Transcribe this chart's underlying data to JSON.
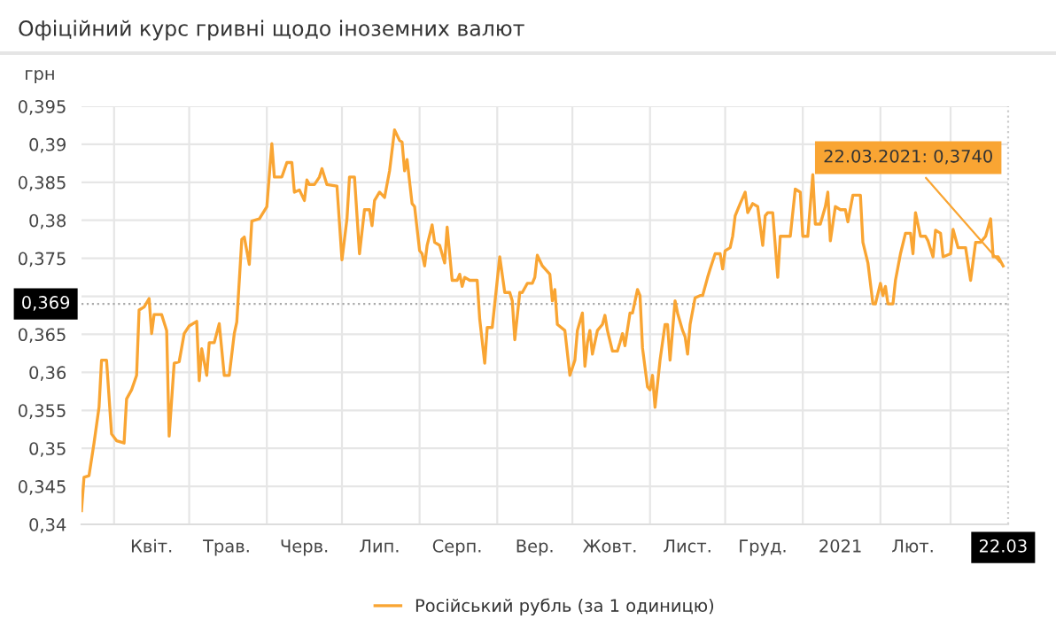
{
  "chart_data": {
    "type": "line",
    "title": "Офіційний курс гривні щодо іноземних валют",
    "ylabel": "грн",
    "x": [
      "2020-03-19",
      "2020-03-20",
      "2020-03-22",
      "2020-03-24",
      "2020-03-26",
      "2020-03-27",
      "2020-03-29",
      "2020-03-31",
      "2020-04-02",
      "2020-04-05",
      "2020-04-06",
      "2020-04-08",
      "2020-04-10",
      "2020-04-11",
      "2020-04-13",
      "2020-04-15",
      "2020-04-16",
      "2020-04-17",
      "2020-04-20",
      "2020-04-22",
      "2020-04-23",
      "2020-04-25",
      "2020-04-27",
      "2020-04-29",
      "2020-05-01",
      "2020-05-04",
      "2020-05-05",
      "2020-05-06",
      "2020-05-08",
      "2020-05-09",
      "2020-05-11",
      "2020-05-13",
      "2020-05-15",
      "2020-05-17",
      "2020-05-19",
      "2020-05-20",
      "2020-05-22",
      "2020-05-23",
      "2020-05-25",
      "2020-05-26",
      "2020-05-29",
      "2020-06-01",
      "2020-06-03",
      "2020-06-04",
      "2020-06-07",
      "2020-06-09",
      "2020-06-11",
      "2020-06-12",
      "2020-06-14",
      "2020-06-16",
      "2020-06-17",
      "2020-06-18",
      "2020-06-20",
      "2020-06-22",
      "2020-06-23",
      "2020-06-25",
      "2020-06-29",
      "2020-07-01",
      "2020-07-03",
      "2020-07-04",
      "2020-07-06",
      "2020-07-08",
      "2020-07-10",
      "2020-07-12",
      "2020-07-13",
      "2020-07-14",
      "2020-07-16",
      "2020-07-18",
      "2020-07-20",
      "2020-07-22",
      "2020-07-24",
      "2020-07-25",
      "2020-07-26",
      "2020-07-27",
      "2020-07-29",
      "2020-07-30",
      "2020-08-01",
      "2020-08-02",
      "2020-08-03",
      "2020-08-04",
      "2020-08-06",
      "2020-08-07",
      "2020-08-09",
      "2020-08-11",
      "2020-08-12",
      "2020-08-14",
      "2020-08-16",
      "2020-08-17",
      "2020-08-18",
      "2020-08-19",
      "2020-08-21",
      "2020-08-24",
      "2020-08-25",
      "2020-08-27",
      "2020-08-28",
      "2020-08-30",
      "2020-09-02",
      "2020-09-04",
      "2020-09-06",
      "2020-09-07",
      "2020-09-08",
      "2020-09-10",
      "2020-09-11",
      "2020-09-13",
      "2020-09-15",
      "2020-09-16",
      "2020-09-17",
      "2020-09-19",
      "2020-09-22",
      "2020-09-23",
      "2020-09-24",
      "2020-09-25",
      "2020-09-28",
      "2020-09-30",
      "2020-10-02",
      "2020-10-03",
      "2020-10-05",
      "2020-10-06",
      "2020-10-07",
      "2020-10-08",
      "2020-10-09",
      "2020-10-11",
      "2020-10-13",
      "2020-10-14",
      "2020-10-15",
      "2020-10-17",
      "2020-10-19",
      "2020-10-20",
      "2020-10-21",
      "2020-10-22",
      "2020-10-24",
      "2020-10-25",
      "2020-10-27",
      "2020-10-28",
      "2020-10-29",
      "2020-10-31",
      "2020-11-01",
      "2020-11-02",
      "2020-11-03",
      "2020-11-05",
      "2020-11-07",
      "2020-11-08",
      "2020-11-09",
      "2020-11-11",
      "2020-11-12",
      "2020-11-14",
      "2020-11-15",
      "2020-11-16",
      "2020-11-17",
      "2020-11-19",
      "2020-11-21",
      "2020-11-22",
      "2020-11-24",
      "2020-11-25",
      "2020-11-27",
      "2020-11-29",
      "2020-11-30",
      "2020-12-01",
      "2020-12-03",
      "2020-12-04",
      "2020-12-05",
      "2020-12-07",
      "2020-12-09",
      "2020-12-10",
      "2020-12-12",
      "2020-12-14",
      "2020-12-16",
      "2020-12-17",
      "2020-12-18",
      "2020-12-20",
      "2020-12-22",
      "2020-12-23",
      "2020-12-25",
      "2020-12-27",
      "2020-12-29",
      "2020-12-31",
      "2021-01-01",
      "2021-01-03",
      "2021-01-05",
      "2021-01-06",
      "2021-01-08",
      "2021-01-10",
      "2021-01-11",
      "2021-01-12",
      "2021-01-14",
      "2021-01-16",
      "2021-01-18",
      "2021-01-19",
      "2021-01-21",
      "2021-01-23",
      "2021-01-24",
      "2021-01-25",
      "2021-01-27",
      "2021-01-29",
      "2021-01-30",
      "2021-02-01",
      "2021-02-02",
      "2021-02-03",
      "2021-02-04",
      "2021-02-06",
      "2021-02-07",
      "2021-02-09",
      "2021-02-11",
      "2021-02-13",
      "2021-02-14",
      "2021-02-15",
      "2021-02-17",
      "2021-02-19",
      "2021-02-20",
      "2021-02-22",
      "2021-02-23",
      "2021-02-25",
      "2021-02-26",
      "2021-03-01",
      "2021-03-02",
      "2021-03-04",
      "2021-03-05",
      "2021-03-07",
      "2021-03-09",
      "2021-03-11",
      "2021-03-13",
      "2021-03-15",
      "2021-03-17",
      "2021-03-18",
      "2021-03-20",
      "2021-03-22"
    ],
    "series": [
      {
        "name": "Російський рубль (за 1 одиницю)",
        "color": "#f9a533",
        "values": [
          0.3418,
          0.3462,
          0.3464,
          0.3507,
          0.3554,
          0.3616,
          0.3616,
          0.3519,
          0.351,
          0.3507,
          0.3565,
          0.3577,
          0.3596,
          0.3682,
          0.3686,
          0.3697,
          0.3651,
          0.3676,
          0.3676,
          0.3655,
          0.3516,
          0.3612,
          0.3614,
          0.3651,
          0.3661,
          0.3667,
          0.3589,
          0.3631,
          0.3596,
          0.3639,
          0.3639,
          0.3664,
          0.3596,
          0.3596,
          0.3651,
          0.3666,
          0.3775,
          0.3778,
          0.3742,
          0.3799,
          0.3802,
          0.3818,
          0.3901,
          0.3857,
          0.3857,
          0.3876,
          0.3876,
          0.3837,
          0.384,
          0.3826,
          0.3853,
          0.3847,
          0.3847,
          0.3857,
          0.3868,
          0.3847,
          0.3845,
          0.3748,
          0.3802,
          0.3857,
          0.3857,
          0.3756,
          0.3814,
          0.3814,
          0.3793,
          0.3826,
          0.3837,
          0.383,
          0.3865,
          0.3919,
          0.3905,
          0.3903,
          0.3865,
          0.388,
          0.3822,
          0.3818,
          0.376,
          0.3756,
          0.374,
          0.3767,
          0.3794,
          0.3771,
          0.3767,
          0.3744,
          0.3791,
          0.3721,
          0.3721,
          0.3729,
          0.3713,
          0.3725,
          0.3721,
          0.3721,
          0.367,
          0.3612,
          0.3659,
          0.3659,
          0.3752,
          0.3705,
          0.3705,
          0.3694,
          0.3643,
          0.3705,
          0.3705,
          0.3717,
          0.3717,
          0.3725,
          0.3754,
          0.374,
          0.3729,
          0.3694,
          0.3709,
          0.3663,
          0.3655,
          0.3596,
          0.3616,
          0.3655,
          0.3678,
          0.3608,
          0.3639,
          0.3655,
          0.3624,
          0.3655,
          0.3663,
          0.3675,
          0.3655,
          0.3628,
          0.3628,
          0.3639,
          0.3651,
          0.3635,
          0.3678,
          0.3678,
          0.3709,
          0.3701,
          0.3632,
          0.3581,
          0.3577,
          0.3596,
          0.3554,
          0.3616,
          0.3663,
          0.3663,
          0.3616,
          0.3694,
          0.3678,
          0.3655,
          0.3647,
          0.3624,
          0.3663,
          0.3698,
          0.3701,
          0.3701,
          0.3725,
          0.3736,
          0.3756,
          0.3756,
          0.3736,
          0.376,
          0.3764,
          0.3779,
          0.3806,
          0.3822,
          0.3837,
          0.381,
          0.3822,
          0.3818,
          0.3767,
          0.3806,
          0.381,
          0.381,
          0.3725,
          0.3779,
          0.3779,
          0.3779,
          0.3841,
          0.3837,
          0.3779,
          0.3779,
          0.386,
          0.3795,
          0.3795,
          0.3818,
          0.3837,
          0.3773,
          0.3818,
          0.3814,
          0.3814,
          0.3798,
          0.3833,
          0.3833,
          0.3833,
          0.3771,
          0.3744,
          0.369,
          0.369,
          0.3717,
          0.3701,
          0.3713,
          0.369,
          0.369,
          0.3721,
          0.3756,
          0.3783,
          0.3783,
          0.3756,
          0.381,
          0.3779,
          0.3779,
          0.3773,
          0.3752,
          0.3787,
          0.3783,
          0.3752,
          0.3756,
          0.3788,
          0.3764,
          0.3764,
          0.3764,
          0.3721,
          0.3771,
          0.3771,
          0.3779,
          0.3802,
          0.3752,
          0.3752,
          0.374
        ]
      }
    ],
    "xlim": [
      "2020-03-19",
      "2021-03-24"
    ],
    "xticks": [
      {
        "value": "2020-04-01",
        "label": null
      },
      {
        "value": "2020-04-16",
        "label": "Квіт."
      },
      {
        "value": "2020-05-01",
        "label": null
      },
      {
        "value": "2020-05-16",
        "label": "Трав."
      },
      {
        "value": "2020-06-01",
        "label": null
      },
      {
        "value": "2020-06-16",
        "label": "Черв."
      },
      {
        "value": "2020-07-01",
        "label": null
      },
      {
        "value": "2020-07-16",
        "label": "Лип."
      },
      {
        "value": "2020-08-01",
        "label": null
      },
      {
        "value": "2020-08-16",
        "label": "Серп."
      },
      {
        "value": "2020-09-01",
        "label": null
      },
      {
        "value": "2020-09-16",
        "label": "Вер."
      },
      {
        "value": "2020-10-01",
        "label": null
      },
      {
        "value": "2020-10-16",
        "label": "Жовт."
      },
      {
        "value": "2020-11-01",
        "label": null
      },
      {
        "value": "2020-11-16",
        "label": "Лист."
      },
      {
        "value": "2020-12-01",
        "label": null
      },
      {
        "value": "2020-12-16",
        "label": "Груд."
      },
      {
        "value": "2021-01-01",
        "label": null
      },
      {
        "value": "2021-01-16",
        "label": "2021"
      },
      {
        "value": "2021-02-01",
        "label": null
      },
      {
        "value": "2021-02-14",
        "label": "Лют."
      },
      {
        "value": "2021-03-01",
        "label": null
      },
      {
        "value": "2021-03-22",
        "label": "22.03"
      }
    ],
    "ylim": [
      0.34,
      0.395
    ],
    "yticks": [
      {
        "value": 0.34,
        "label": "0,34"
      },
      {
        "value": 0.345,
        "label": "0,345"
      },
      {
        "value": 0.35,
        "label": "0,35"
      },
      {
        "value": 0.355,
        "label": "0,355"
      },
      {
        "value": 0.36,
        "label": "0,36"
      },
      {
        "value": 0.365,
        "label": "0,365"
      },
      {
        "value": 0.37,
        "label": null
      },
      {
        "value": 0.375,
        "label": "0,375"
      },
      {
        "value": 0.38,
        "label": "0,38"
      },
      {
        "value": 0.385,
        "label": "0,385"
      },
      {
        "value": 0.39,
        "label": "0,39"
      },
      {
        "value": 0.395,
        "label": "0,395"
      }
    ],
    "ref_lines": [
      {
        "axis": "y",
        "value": 0.369,
        "label": "0,369",
        "color": "#aaaaaa",
        "line_style": "dotted"
      }
    ],
    "annotations": [
      {
        "text": "22.03.2021: 0,3740",
        "x": "2021-03-22",
        "y": 0.374
      }
    ],
    "grid": true,
    "legend": "bottom",
    "marker": "none",
    "line_style": "solid"
  }
}
